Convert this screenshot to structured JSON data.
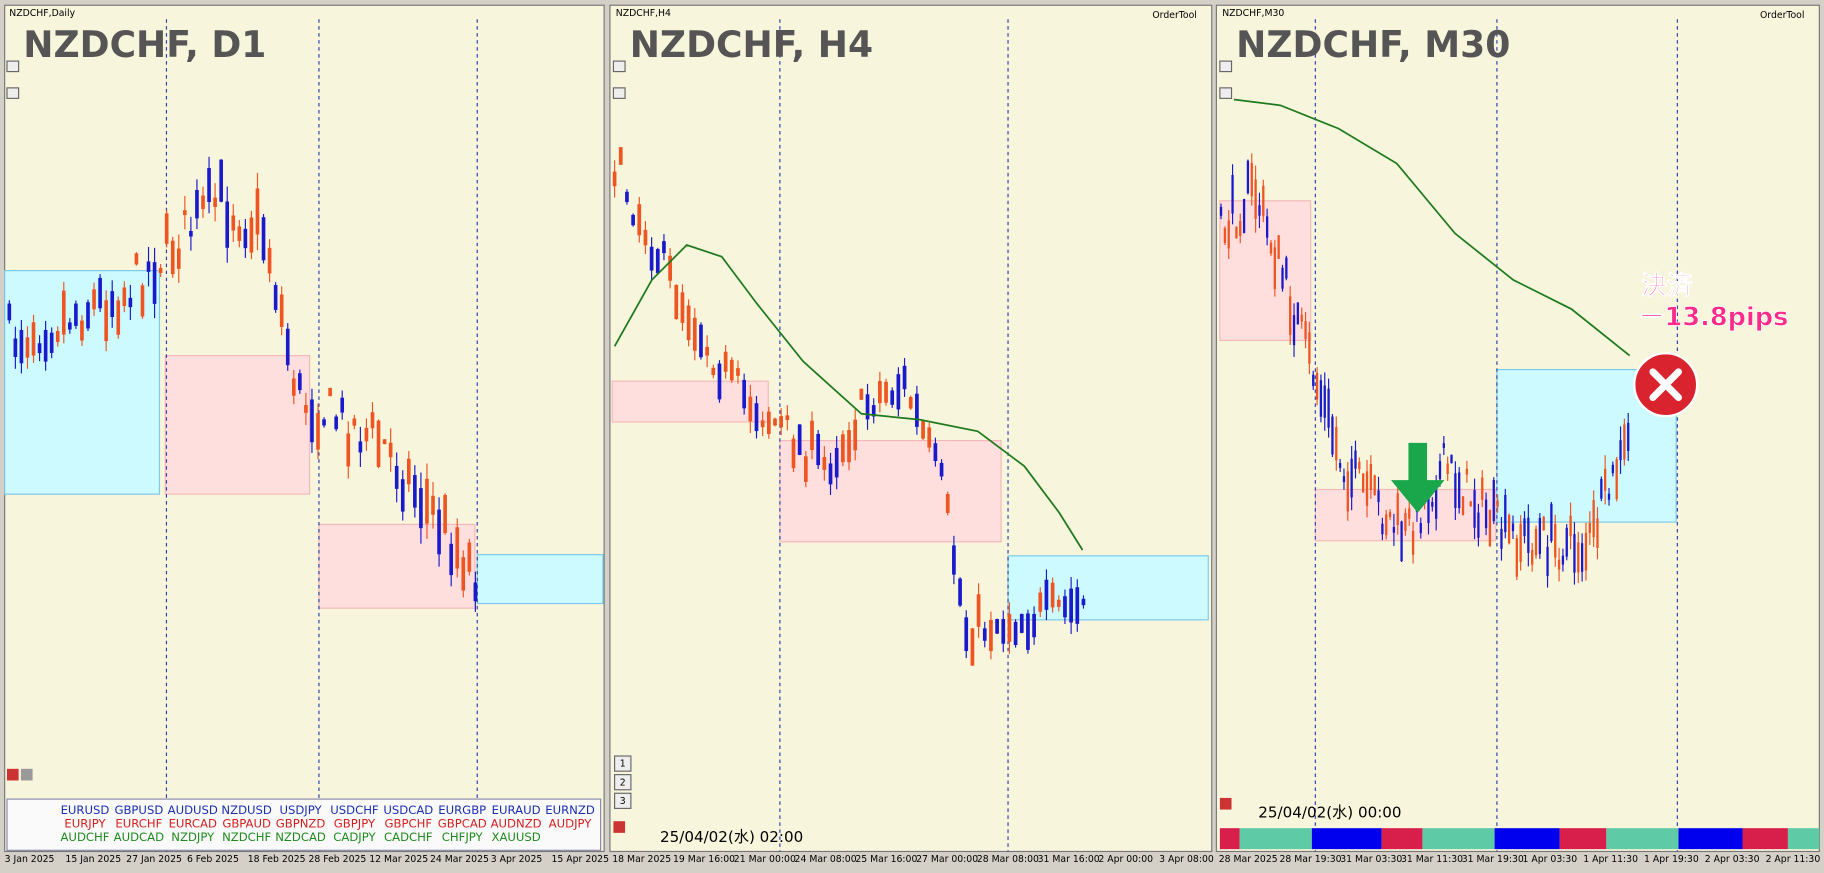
{
  "panels": [
    {
      "title": "NZDCHF,Daily",
      "label": "NZDCHF, D1",
      "dates": [
        "3 Jan 2025",
        "15 Jan 2025",
        "27 Jan 2025",
        "6 Feb 2025",
        "18 Feb 2025",
        "28 Feb 2025",
        "12 Mar 2025",
        "24 Mar 2025",
        "3 Apr 2025",
        "15 Apr 2025"
      ]
    },
    {
      "title": "NZDCHF,H4",
      "label": "NZDCHF, H4",
      "tool": "OrderTool",
      "timestamp": "25/04/02(水) 02:00",
      "buttons": [
        "1",
        "2",
        "3"
      ],
      "dates": [
        "18 Mar 2025",
        "19 Mar 16:00",
        "21 Mar 00:00",
        "24 Mar 08:00",
        "25 Mar 16:00",
        "27 Mar 00:00",
        "28 Mar 08:00",
        "31 Mar 16:00",
        "2 Apr 00:00",
        "3 Apr 08:00"
      ]
    },
    {
      "title": "NZDCHF,M30",
      "label": "NZDCHF, M30",
      "tool": "OrderTool",
      "timestamp": "25/04/02(水) 00:00",
      "annotation": [
        "決済",
        "ー13.8pips"
      ],
      "dates": [
        "28 Mar 2025",
        "28 Mar 19:30",
        "31 Mar 03:30",
        "31 Mar 11:30",
        "31 Mar 19:30",
        "1 Apr 03:30",
        "1 Apr 11:30",
        "1 Apr 19:30",
        "2 Apr 03:30",
        "2 Apr 11:30"
      ]
    }
  ],
  "pair_grid": {
    "rows": [
      [
        "EURUSD",
        "GBPUSD",
        "AUDUSD",
        "NZDUSD",
        "USDJPY",
        "USDCHF",
        "USDCAD",
        "EURGBP",
        "EURAUD",
        "EURNZD"
      ],
      [
        "EURJPY",
        "EURCHF",
        "EURCAD",
        "GBPAUD",
        "GBPNZD",
        "GBPJPY",
        "GBPCHF",
        "GBPCAD",
        "AUDNZD",
        "AUDJPY"
      ],
      [
        "AUDCHF",
        "AUDCAD",
        "NZDJPY",
        "NZDCHF",
        "NZDCAD",
        "CADJPY",
        "CADCHF",
        "CHFJPY",
        "XAUUSD"
      ]
    ]
  }
}
